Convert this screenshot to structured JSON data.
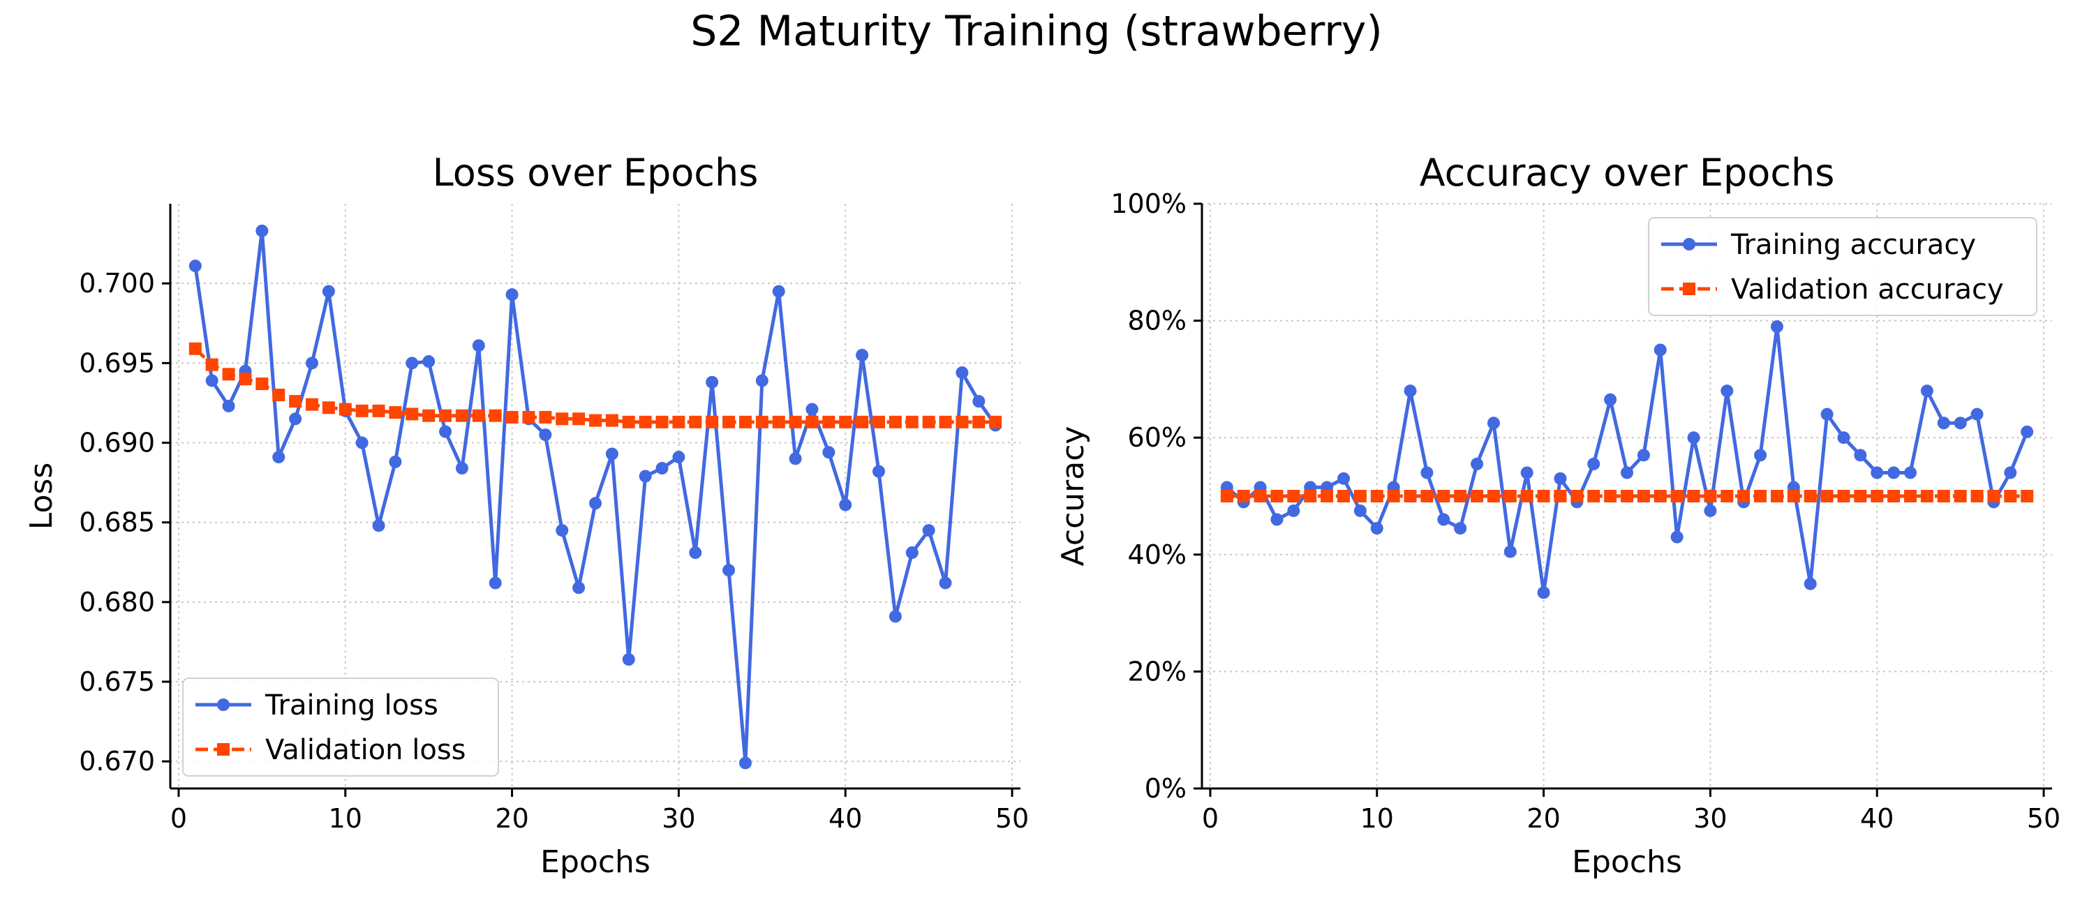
{
  "figure": {
    "title": "S2 Maturity Training (strawberry)"
  },
  "colors": {
    "training": "#4169E1",
    "validation": "#FF4500",
    "grid": "#c8c8c8",
    "axis": "#000000"
  },
  "chart_data": [
    {
      "type": "line",
      "title": "Loss over Epochs",
      "xlabel": "Epochs",
      "ylabel": "Loss",
      "xlim": [
        -0.5,
        50.5
      ],
      "ylim": [
        0.6683,
        0.705
      ],
      "xticks": [
        0,
        10,
        20,
        30,
        40,
        50
      ],
      "yticks": [
        0.67,
        0.675,
        0.68,
        0.685,
        0.69,
        0.695,
        0.7
      ],
      "ytick_labels": [
        "0.670",
        "0.675",
        "0.680",
        "0.685",
        "0.690",
        "0.695",
        "0.700"
      ],
      "grid": true,
      "legend": "lower-left",
      "x": [
        1,
        2,
        3,
        4,
        5,
        6,
        7,
        8,
        9,
        10,
        11,
        12,
        13,
        14,
        15,
        16,
        17,
        18,
        19,
        20,
        21,
        22,
        23,
        24,
        25,
        26,
        27,
        28,
        29,
        30,
        31,
        32,
        33,
        34,
        35,
        36,
        37,
        38,
        39,
        40,
        41,
        42,
        43,
        44,
        45,
        46,
        47,
        48,
        49
      ],
      "series": [
        {
          "name": "Training loss",
          "style": "solid-circle",
          "values": [
            0.7011,
            0.6939,
            0.6923,
            0.6945,
            0.7033,
            0.6891,
            0.6915,
            0.695,
            0.6995,
            0.692,
            0.69,
            0.6848,
            0.6888,
            0.695,
            0.6951,
            0.6907,
            0.6884,
            0.6961,
            0.6812,
            0.6993,
            0.6915,
            0.6905,
            0.6845,
            0.6809,
            0.6862,
            0.6893,
            0.6764,
            0.6879,
            0.6884,
            0.6891,
            0.6831,
            0.6938,
            0.682,
            0.6699,
            0.6939,
            0.6995,
            0.689,
            0.6921,
            0.6894,
            0.6861,
            0.6955,
            0.6882,
            0.6791,
            0.6831,
            0.6845,
            0.6812,
            0.6944,
            0.6926,
            0.6911
          ]
        },
        {
          "name": "Validation loss",
          "style": "dashed-square",
          "values": [
            0.6959,
            0.6949,
            0.6943,
            0.694,
            0.6937,
            0.693,
            0.6926,
            0.6924,
            0.6922,
            0.6921,
            0.692,
            0.692,
            0.6919,
            0.6918,
            0.6917,
            0.6917,
            0.6917,
            0.6917,
            0.6917,
            0.6916,
            0.6916,
            0.6916,
            0.6915,
            0.6915,
            0.6914,
            0.6914,
            0.6913,
            0.6913,
            0.6913,
            0.6913,
            0.6913,
            0.6913,
            0.6913,
            0.6913,
            0.6913,
            0.6913,
            0.6913,
            0.6913,
            0.6913,
            0.6913,
            0.6913,
            0.6913,
            0.6913,
            0.6913,
            0.6913,
            0.6913,
            0.6913,
            0.6913,
            0.6913
          ]
        }
      ]
    },
    {
      "type": "line",
      "title": "Accuracy over Epochs",
      "xlabel": "Epochs",
      "ylabel": "Accuracy",
      "xlim": [
        -0.5,
        50.5
      ],
      "ylim": [
        0,
        1
      ],
      "xticks": [
        0,
        10,
        20,
        30,
        40,
        50
      ],
      "yticks": [
        0,
        0.2,
        0.4,
        0.6,
        0.8,
        1.0
      ],
      "ytick_labels": [
        "0%",
        "20%",
        "40%",
        "60%",
        "80%",
        "100%"
      ],
      "grid": true,
      "legend": "upper-right",
      "x": [
        1,
        2,
        3,
        4,
        5,
        6,
        7,
        8,
        9,
        10,
        11,
        12,
        13,
        14,
        15,
        16,
        17,
        18,
        19,
        20,
        21,
        22,
        23,
        24,
        25,
        26,
        27,
        28,
        29,
        30,
        31,
        32,
        33,
        34,
        35,
        36,
        37,
        38,
        39,
        40,
        41,
        42,
        43,
        44,
        45,
        46,
        47,
        48,
        49
      ],
      "series": [
        {
          "name": "Training accuracy",
          "style": "solid-circle",
          "values": [
            0.515,
            0.49,
            0.515,
            0.46,
            0.475,
            0.515,
            0.515,
            0.53,
            0.475,
            0.445,
            0.515,
            0.68,
            0.54,
            0.46,
            0.445,
            0.555,
            0.625,
            0.405,
            0.54,
            0.335,
            0.53,
            0.49,
            0.555,
            0.665,
            0.54,
            0.57,
            0.75,
            0.43,
            0.6,
            0.475,
            0.68,
            0.49,
            0.57,
            0.79,
            0.515,
            0.35,
            0.64,
            0.6,
            0.57,
            0.54,
            0.54,
            0.54,
            0.68,
            0.625,
            0.625,
            0.64,
            0.49,
            0.54,
            0.61
          ]
        },
        {
          "name": "Validation accuracy",
          "style": "dashed-square",
          "values": [
            0.5,
            0.5,
            0.5,
            0.5,
            0.5,
            0.5,
            0.5,
            0.5,
            0.5,
            0.5,
            0.5,
            0.5,
            0.5,
            0.5,
            0.5,
            0.5,
            0.5,
            0.5,
            0.5,
            0.5,
            0.5,
            0.5,
            0.5,
            0.5,
            0.5,
            0.5,
            0.5,
            0.5,
            0.5,
            0.5,
            0.5,
            0.5,
            0.5,
            0.5,
            0.5,
            0.5,
            0.5,
            0.5,
            0.5,
            0.5,
            0.5,
            0.5,
            0.5,
            0.5,
            0.5,
            0.5,
            0.5,
            0.5,
            0.5
          ]
        }
      ]
    }
  ]
}
